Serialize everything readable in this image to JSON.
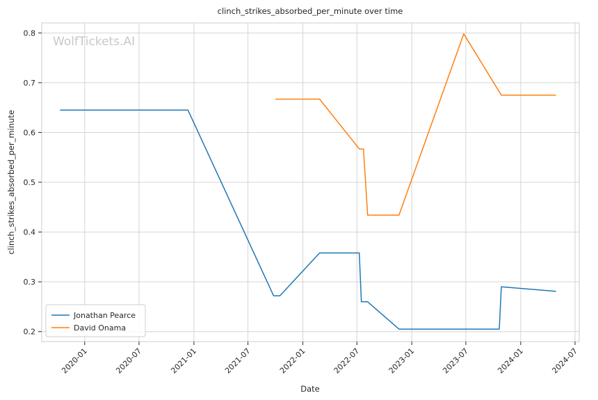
{
  "chart_data": {
    "type": "line",
    "title": "clinch_strikes_absorbed_per_minute over time",
    "xlabel": "Date",
    "ylabel": "clinch_strikes_absorbed_per_minute",
    "watermark": "WolfTickets.AI",
    "x_ticks": [
      "2020-01",
      "2020-07",
      "2021-01",
      "2021-07",
      "2022-01",
      "2022-07",
      "2023-01",
      "2023-07",
      "2024-01",
      "2024-07"
    ],
    "y_ticks": [
      "0.2",
      "0.3",
      "0.4",
      "0.5",
      "0.6",
      "0.7",
      "0.8"
    ],
    "xlim": [
      "2019-08-10",
      "2024-07-15"
    ],
    "ylim": [
      0.18,
      0.82
    ],
    "grid": true,
    "legend_position": "lower-left",
    "series": [
      {
        "name": "Jonathan Pearce",
        "color": "#1f77b4",
        "points": [
          [
            "2019-10-12",
            0.645
          ],
          [
            "2020-12-12",
            0.645
          ],
          [
            "2021-09-25",
            0.272
          ],
          [
            "2021-10-16",
            0.272
          ],
          [
            "2022-02-26",
            0.358
          ],
          [
            "2022-07-09",
            0.358
          ],
          [
            "2022-07-16",
            0.26
          ],
          [
            "2022-08-06",
            0.26
          ],
          [
            "2022-11-19",
            0.205
          ],
          [
            "2023-10-21",
            0.205
          ],
          [
            "2023-10-28",
            0.29
          ],
          [
            "2024-04-27",
            0.281
          ]
        ]
      },
      {
        "name": "David Onama",
        "color": "#ff7f0e",
        "points": [
          [
            "2021-10-02",
            0.667
          ],
          [
            "2022-02-26",
            0.667
          ],
          [
            "2022-07-09",
            0.567
          ],
          [
            "2022-07-23",
            0.567
          ],
          [
            "2022-08-06",
            0.434
          ],
          [
            "2022-11-19",
            0.434
          ],
          [
            "2023-06-24",
            0.798
          ],
          [
            "2023-10-28",
            0.675
          ],
          [
            "2024-04-27",
            0.675
          ]
        ]
      }
    ]
  }
}
